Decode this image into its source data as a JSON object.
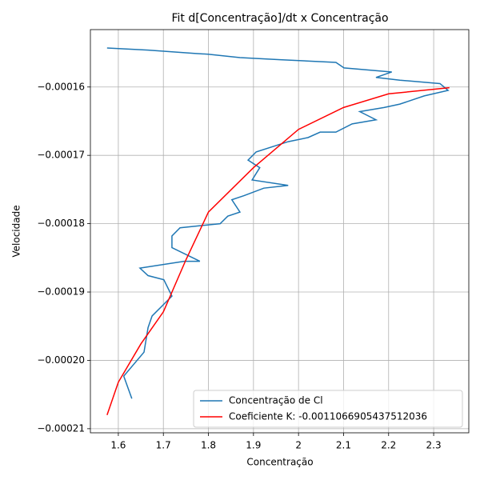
{
  "chart_data": {
    "type": "line",
    "title": "Fit d[Concentração]/dt x Concentração",
    "x_label": "Concentração",
    "y_label": "Velocidade",
    "xlim": [
      1.538,
      2.378
    ],
    "ylim": [
      -0.0002106,
      -0.0001516
    ],
    "xticks": [
      1.6,
      1.7,
      1.8,
      1.9,
      2.0,
      2.1,
      2.2,
      2.3
    ],
    "yticks": [
      {
        "value": -0.00021,
        "label": "−0.00021"
      },
      {
        "value": -0.0002,
        "label": "−0.00020"
      },
      {
        "value": -0.00019,
        "label": "−0.00019"
      },
      {
        "value": -0.00018,
        "label": "−0.00018"
      },
      {
        "value": -0.00017,
        "label": "−0.00017"
      },
      {
        "value": -0.00016,
        "label": "−0.00016"
      }
    ],
    "grid": true,
    "legend": "lower right",
    "series": [
      {
        "name": "Concentração de Cl",
        "color": "#1f77b4",
        "x": [
          1.63,
          1.612,
          1.657,
          1.666,
          1.675,
          1.719,
          1.701,
          1.666,
          1.648,
          1.746,
          1.781,
          1.719,
          1.719,
          1.737,
          1.826,
          1.843,
          1.87,
          1.852,
          1.879,
          1.923,
          1.977,
          1.897,
          1.914,
          1.888,
          1.906,
          1.977,
          2.021,
          2.048,
          2.083,
          2.119,
          2.172,
          2.136,
          2.19,
          2.225,
          2.279,
          2.332,
          2.314,
          2.225,
          2.172,
          2.207,
          2.101,
          2.083,
          1.959,
          1.87,
          1.799,
          1.772,
          1.666,
          1.575
        ],
        "values": [
          -0.0002056,
          -0.0002023,
          -0.0001988,
          -0.0001952,
          -0.0001935,
          -0.0001906,
          -0.0001882,
          -0.0001876,
          -0.0001865,
          -0.0001855,
          -0.0001855,
          -0.0001835,
          -0.0001818,
          -0.0001806,
          -0.00018,
          -0.0001789,
          -0.0001783,
          -0.0001765,
          -0.0001759,
          -0.0001748,
          -0.0001744,
          -0.0001736,
          -0.0001718,
          -0.0001707,
          -0.0001695,
          -0.000168,
          -0.0001674,
          -0.0001666,
          -0.0001666,
          -0.0001654,
          -0.0001648,
          -0.0001636,
          -0.000163,
          -0.0001625,
          -0.0001613,
          -0.0001605,
          -0.0001595,
          -0.000159,
          -0.0001586,
          -0.0001578,
          -0.0001572,
          -0.0001564,
          -0.000156,
          -0.0001557,
          -0.0001552,
          -0.0001551,
          -0.0001546,
          -0.0001543
        ]
      },
      {
        "name": "Coeficiente K: -0.0011066905437512036",
        "color": "#ff0000",
        "x": [
          1.575,
          1.6,
          1.65,
          1.7,
          1.75,
          1.8,
          1.9,
          2.0,
          2.1,
          2.2,
          2.335
        ],
        "values": [
          -0.000208,
          -0.0002032,
          -0.0001976,
          -0.0001929,
          -0.0001853,
          -0.0001783,
          -0.0001718,
          -0.0001662,
          -0.000163,
          -0.000161,
          -0.0001601
        ]
      }
    ]
  }
}
